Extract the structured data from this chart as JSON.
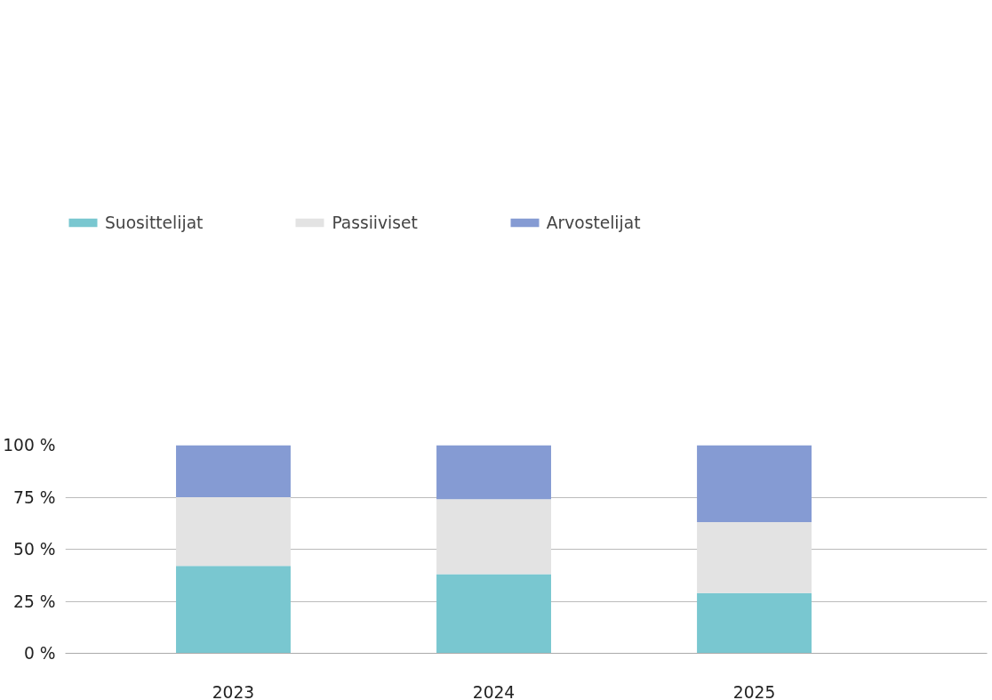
{
  "chart_data": {
    "type": "bar",
    "stacked": true,
    "categories": [
      "2023",
      "2024",
      "2025"
    ],
    "series": [
      {
        "name": "Suosittelijat",
        "color": "#79c7d0",
        "values": [
          42,
          38,
          29
        ]
      },
      {
        "name": "Passiiviset",
        "color": "#e3e3e3",
        "values": [
          33,
          36,
          34
        ]
      },
      {
        "name": "Arvostelijat",
        "color": "#859bd3",
        "values": [
          25,
          26,
          37
        ]
      }
    ],
    "ylim": [
      0,
      100
    ],
    "yticks": [
      {
        "value": 0,
        "label": "0 %"
      },
      {
        "value": 25,
        "label": "25 %"
      },
      {
        "value": 50,
        "label": "50 %"
      },
      {
        "value": 75,
        "label": "75 %"
      },
      {
        "value": 100,
        "label": "100 %"
      }
    ],
    "grid": "y",
    "legend": "top left"
  }
}
